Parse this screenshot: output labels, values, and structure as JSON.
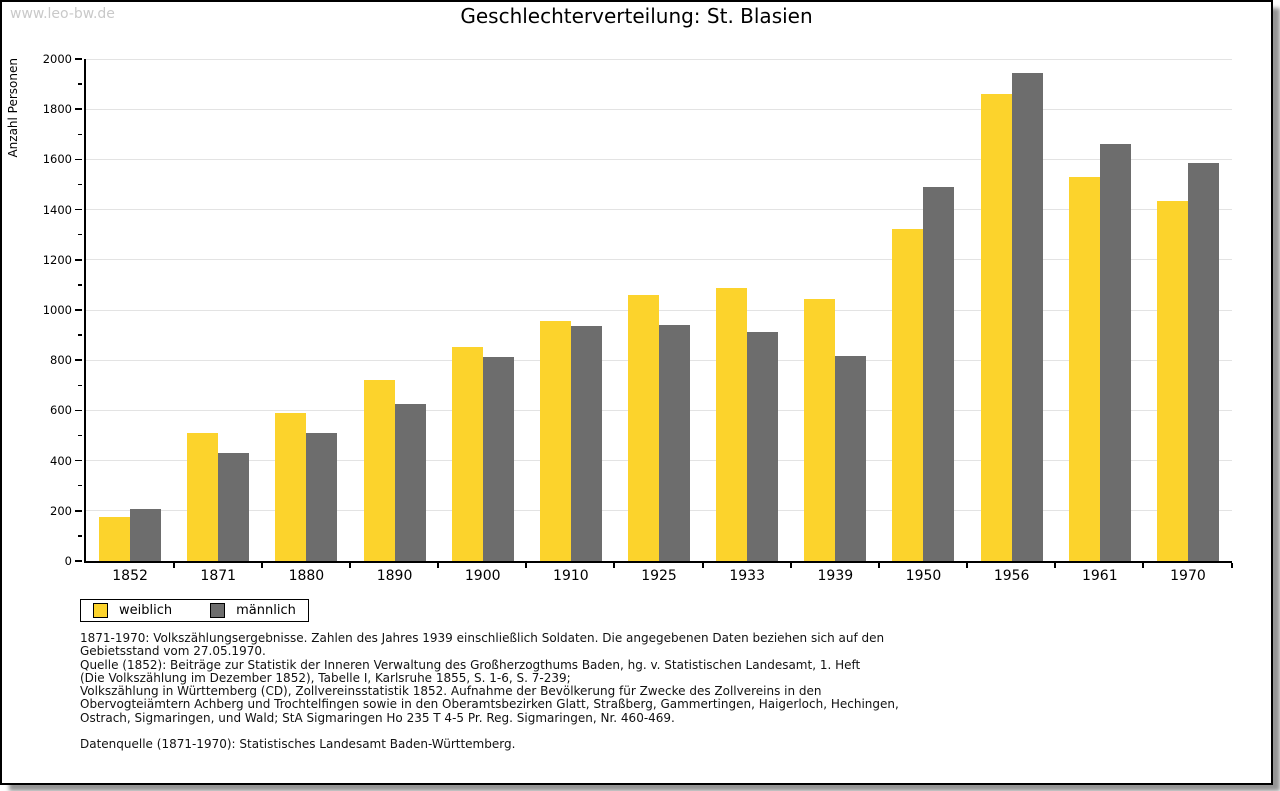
{
  "watermark": "www.leo-bw.de",
  "title": "Geschlechterverteilung: St. Blasien",
  "chart_data": {
    "type": "bar",
    "title": "Geschlechterverteilung: St. Blasien",
    "xlabel": "",
    "ylabel": "Anzahl Personen",
    "ylim": [
      0,
      2000
    ],
    "ytick_step": 200,
    "yminor_step": 100,
    "grid": "horizontal-major",
    "legend_position": "bottom-left",
    "categories": [
      "1852",
      "1871",
      "1880",
      "1890",
      "1900",
      "1910",
      "1925",
      "1933",
      "1939",
      "1950",
      "1956",
      "1961",
      "1970"
    ],
    "series": [
      {
        "name": "weiblich",
        "color": "#fcd32c",
        "values": [
          177,
          510,
          590,
          723,
          853,
          957,
          1061,
          1087,
          1045,
          1322,
          1860,
          1529,
          1435
        ]
      },
      {
        "name": "männlich",
        "color": "#6d6d6d",
        "values": [
          209,
          432,
          511,
          626,
          812,
          937,
          939,
          914,
          817,
          1491,
          1945,
          1662,
          1584
        ]
      }
    ]
  },
  "legend": {
    "items": [
      {
        "label": "weiblich"
      },
      {
        "label": "männlich"
      }
    ]
  },
  "footnotes": {
    "lines": [
      "1871-1970: Volkszählungsergebnisse. Zahlen des Jahres 1939 einschließlich Soldaten. Die angegebenen Daten beziehen sich auf den",
      "Gebietsstand vom 27.05.1970.",
      "Quelle (1852): Beiträge zur Statistik der Inneren Verwaltung des Großherzogthums Baden, hg. v. Statistischen Landesamt, 1. Heft",
      "(Die Volkszählung im Dezember 1852), Tabelle I, Karlsruhe 1855, S. 1-6, S. 7-239;",
      "Volkszählung in Württemberg (CD), Zollvereinsstatistik 1852. Aufnahme der Bevölkerung für Zwecke des Zollvereins in den",
      "Obervogteiämtern Achberg und Trochtelfingen sowie in den Oberamtsbezirken Glatt, Straßberg, Gammertingen, Haigerloch, Hechingen,",
      "Ostrach, Sigmaringen, und Wald; StA Sigmaringen Ho 235 T 4-5 Pr. Reg. Sigmaringen, Nr. 460-469."
    ],
    "datasource": "Datenquelle (1871-1970): Statistisches Landesamt Baden-Württemberg."
  },
  "colors": {
    "weiblich": "#fcd32c",
    "maennlich": "#6d6d6d",
    "gridline": "#e3e3e3",
    "watermark_text": "#c9c9c9"
  }
}
